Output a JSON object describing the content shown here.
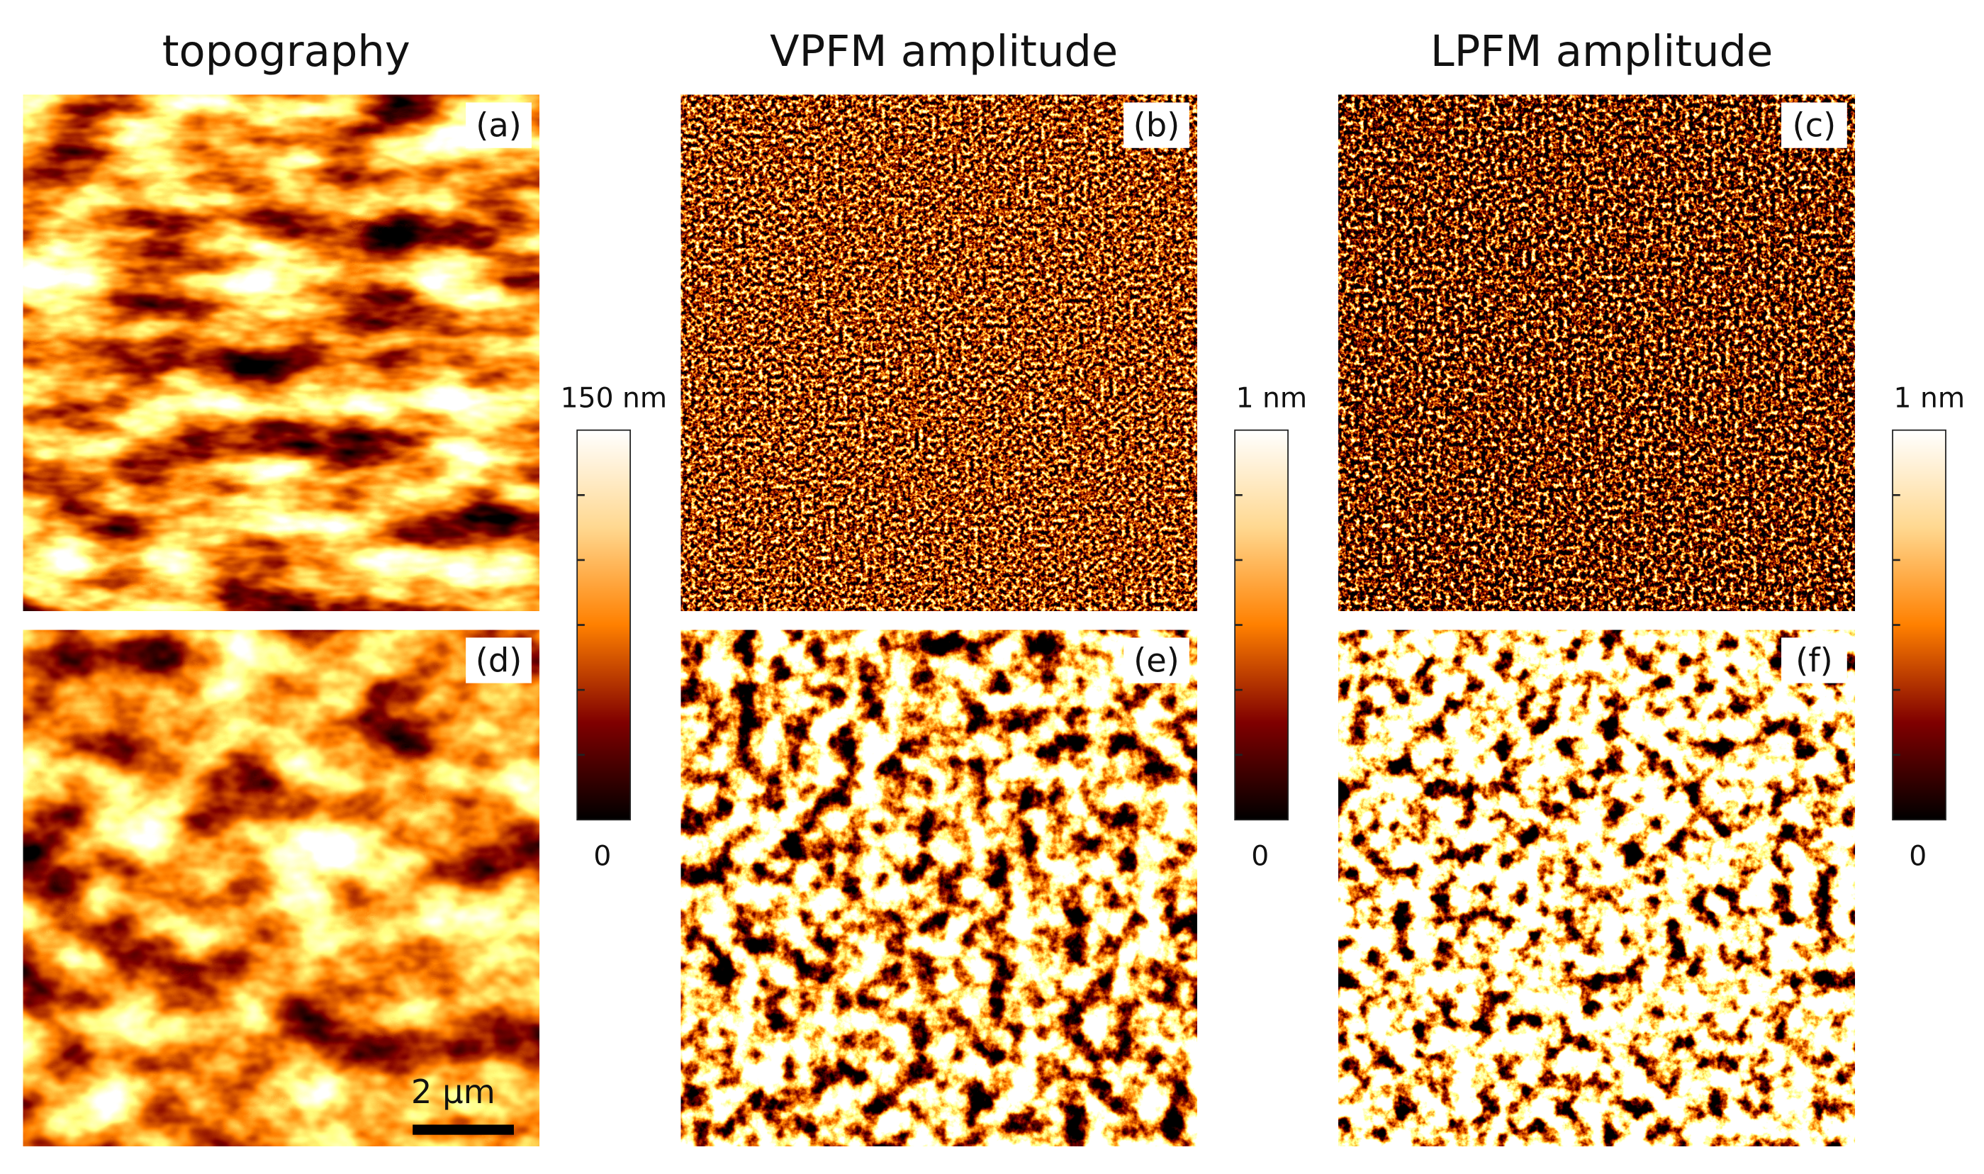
{
  "columns": [
    {
      "title": "topography",
      "panels": [
        "(a)",
        "(d)"
      ],
      "colorbar": {
        "max_label": "150 nm",
        "min_label": "0"
      }
    },
    {
      "title": "VPFM amplitude",
      "panels": [
        "(b)",
        "(e)"
      ],
      "colorbar": {
        "max_label": "1 nm",
        "min_label": "0"
      }
    },
    {
      "title": "LPFM amplitude",
      "panels": [
        "(c)",
        "(f)"
      ],
      "colorbar": {
        "max_label": "1 nm",
        "min_label": "0"
      }
    }
  ],
  "scale_bar": "2 μm"
}
